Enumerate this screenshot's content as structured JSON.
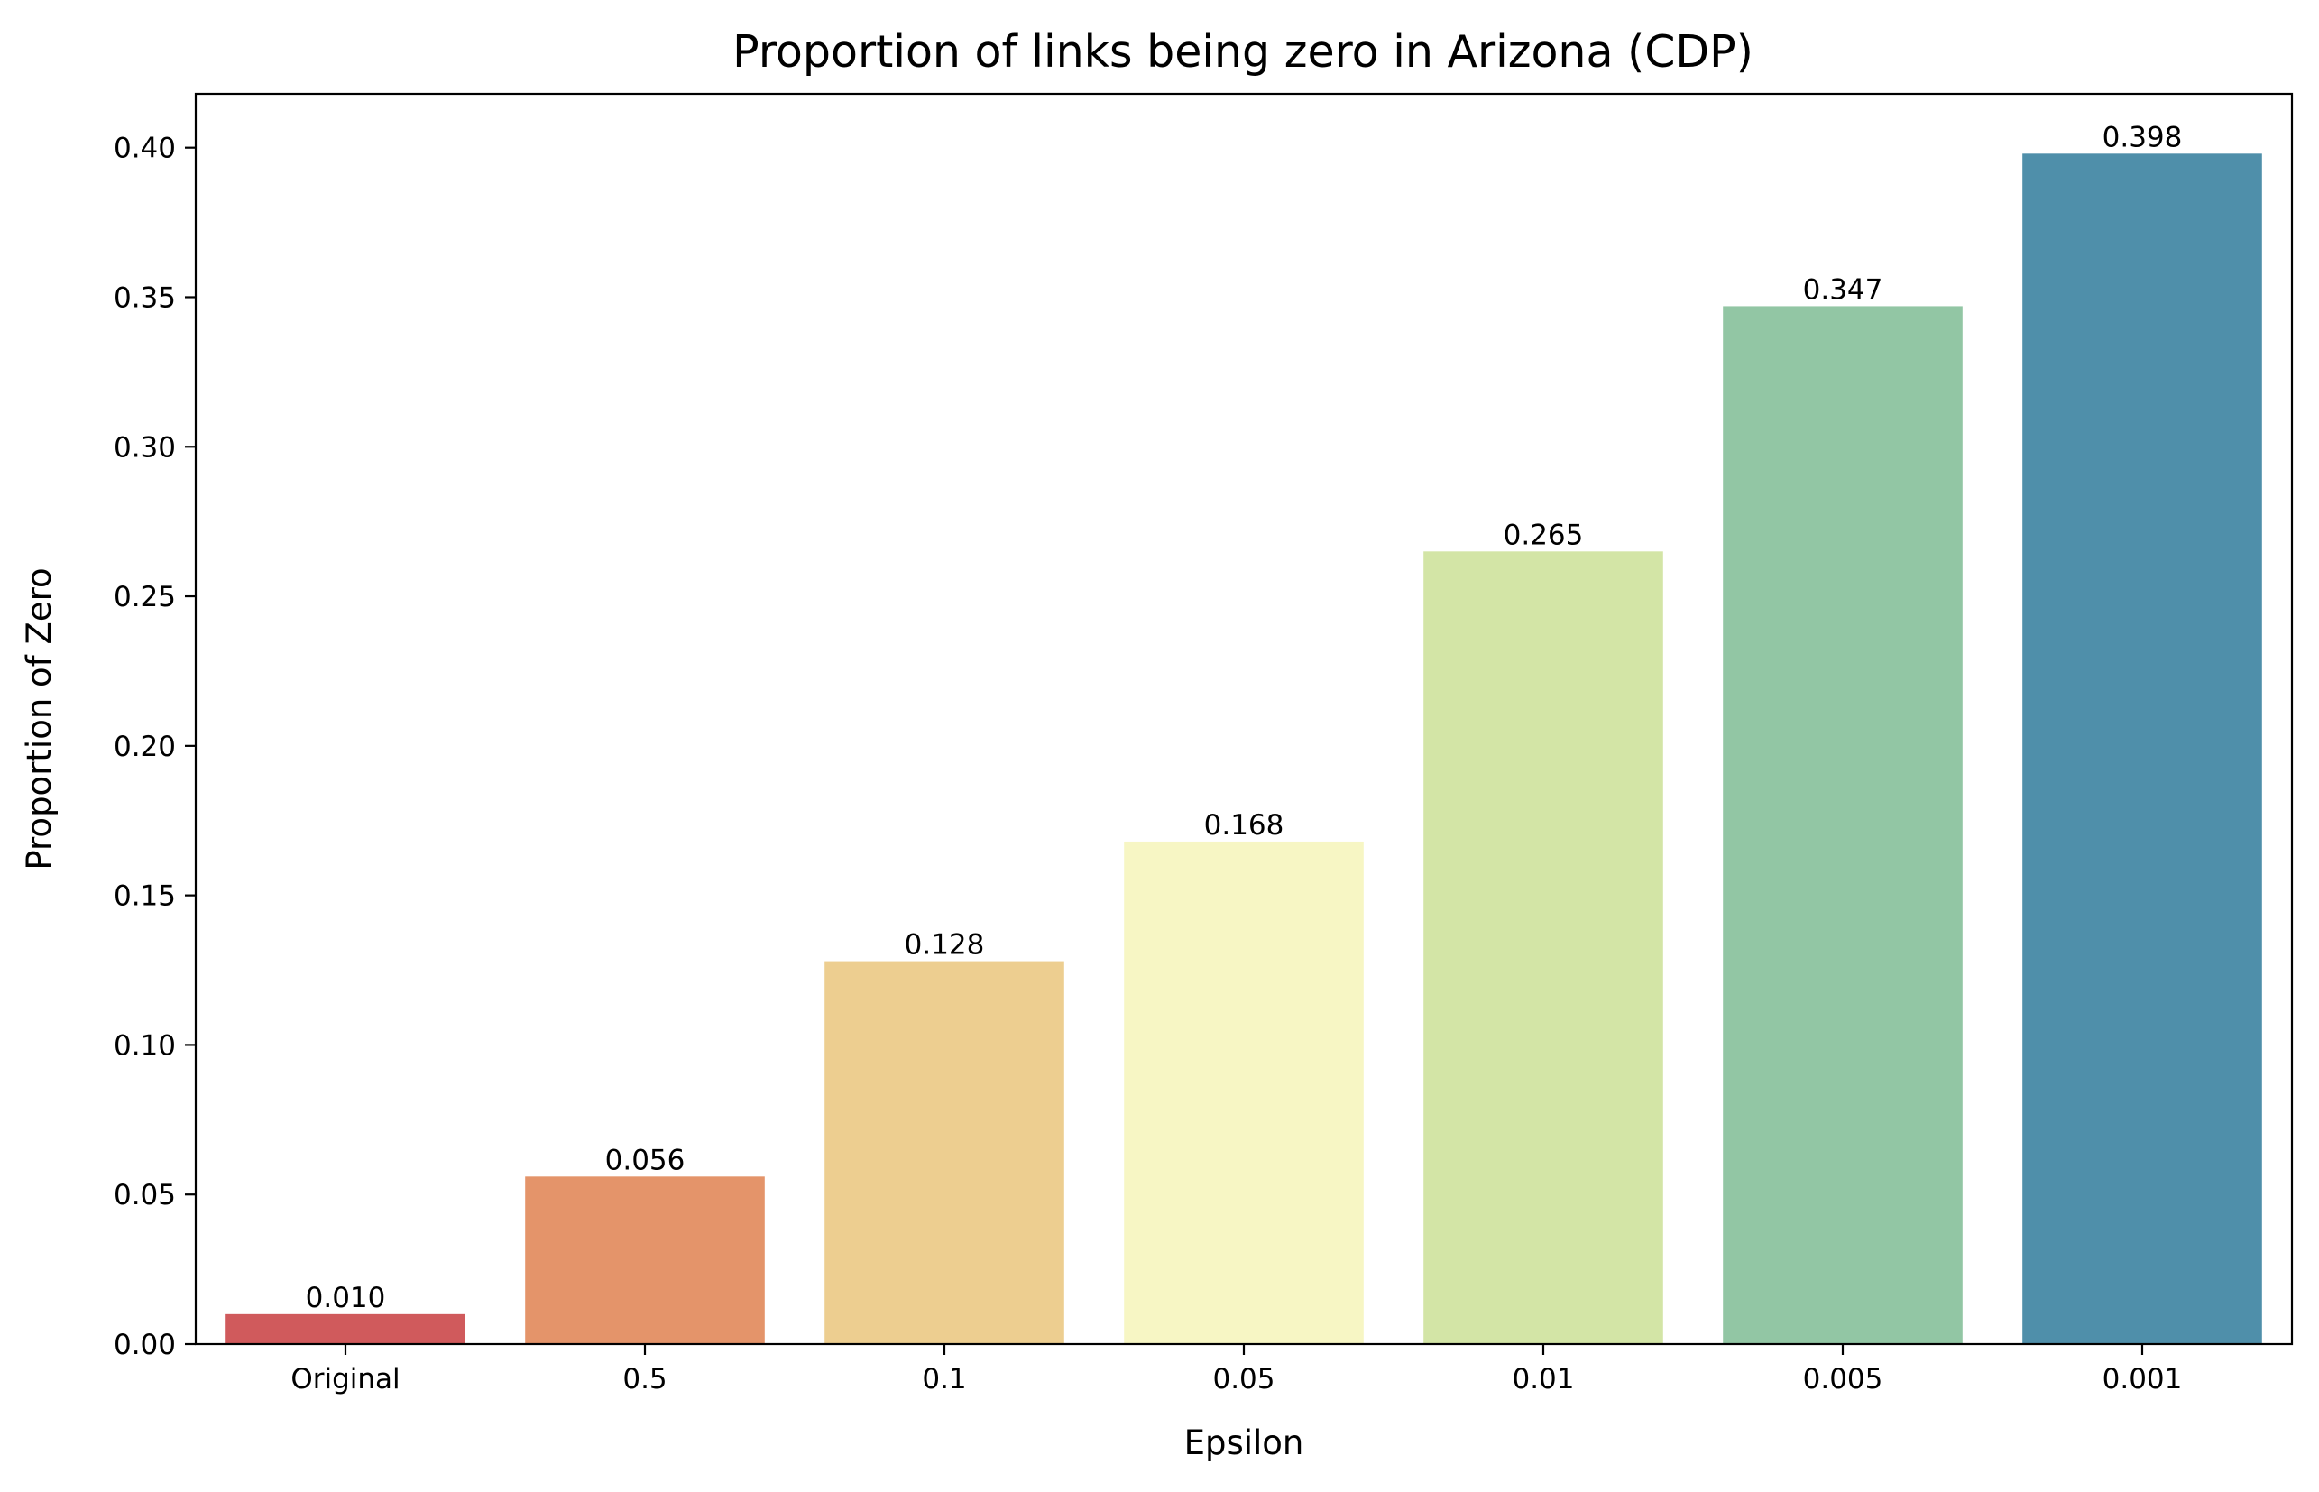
{
  "chart_data": {
    "type": "bar",
    "title": "Proportion of links being zero in Arizona (CDP)",
    "xlabel": "Epsilon",
    "ylabel": "Proportion of Zero",
    "categories": [
      "Original",
      "0.5",
      "0.1",
      "0.05",
      "0.01",
      "0.005",
      "0.001"
    ],
    "values": [
      0.01,
      0.056,
      0.128,
      0.168,
      0.265,
      0.347,
      0.398
    ],
    "data_labels": [
      "0.010",
      "0.056",
      "0.128",
      "0.168",
      "0.265",
      "0.347",
      "0.398"
    ],
    "colors": [
      "#d05a5c",
      "#e4946a",
      "#edce90",
      "#f7f6c4",
      "#d3e5a6",
      "#92c6a4",
      "#4f8faa"
    ],
    "ylim": [
      0,
      0.418
    ],
    "yticks": [
      0.0,
      0.05,
      0.1,
      0.15,
      0.2,
      0.25,
      0.3,
      0.35,
      0.4
    ],
    "ytick_labels": [
      "0.00",
      "0.05",
      "0.10",
      "0.15",
      "0.20",
      "0.25",
      "0.30",
      "0.35",
      "0.40"
    ],
    "grid": false,
    "legend": "none"
  }
}
